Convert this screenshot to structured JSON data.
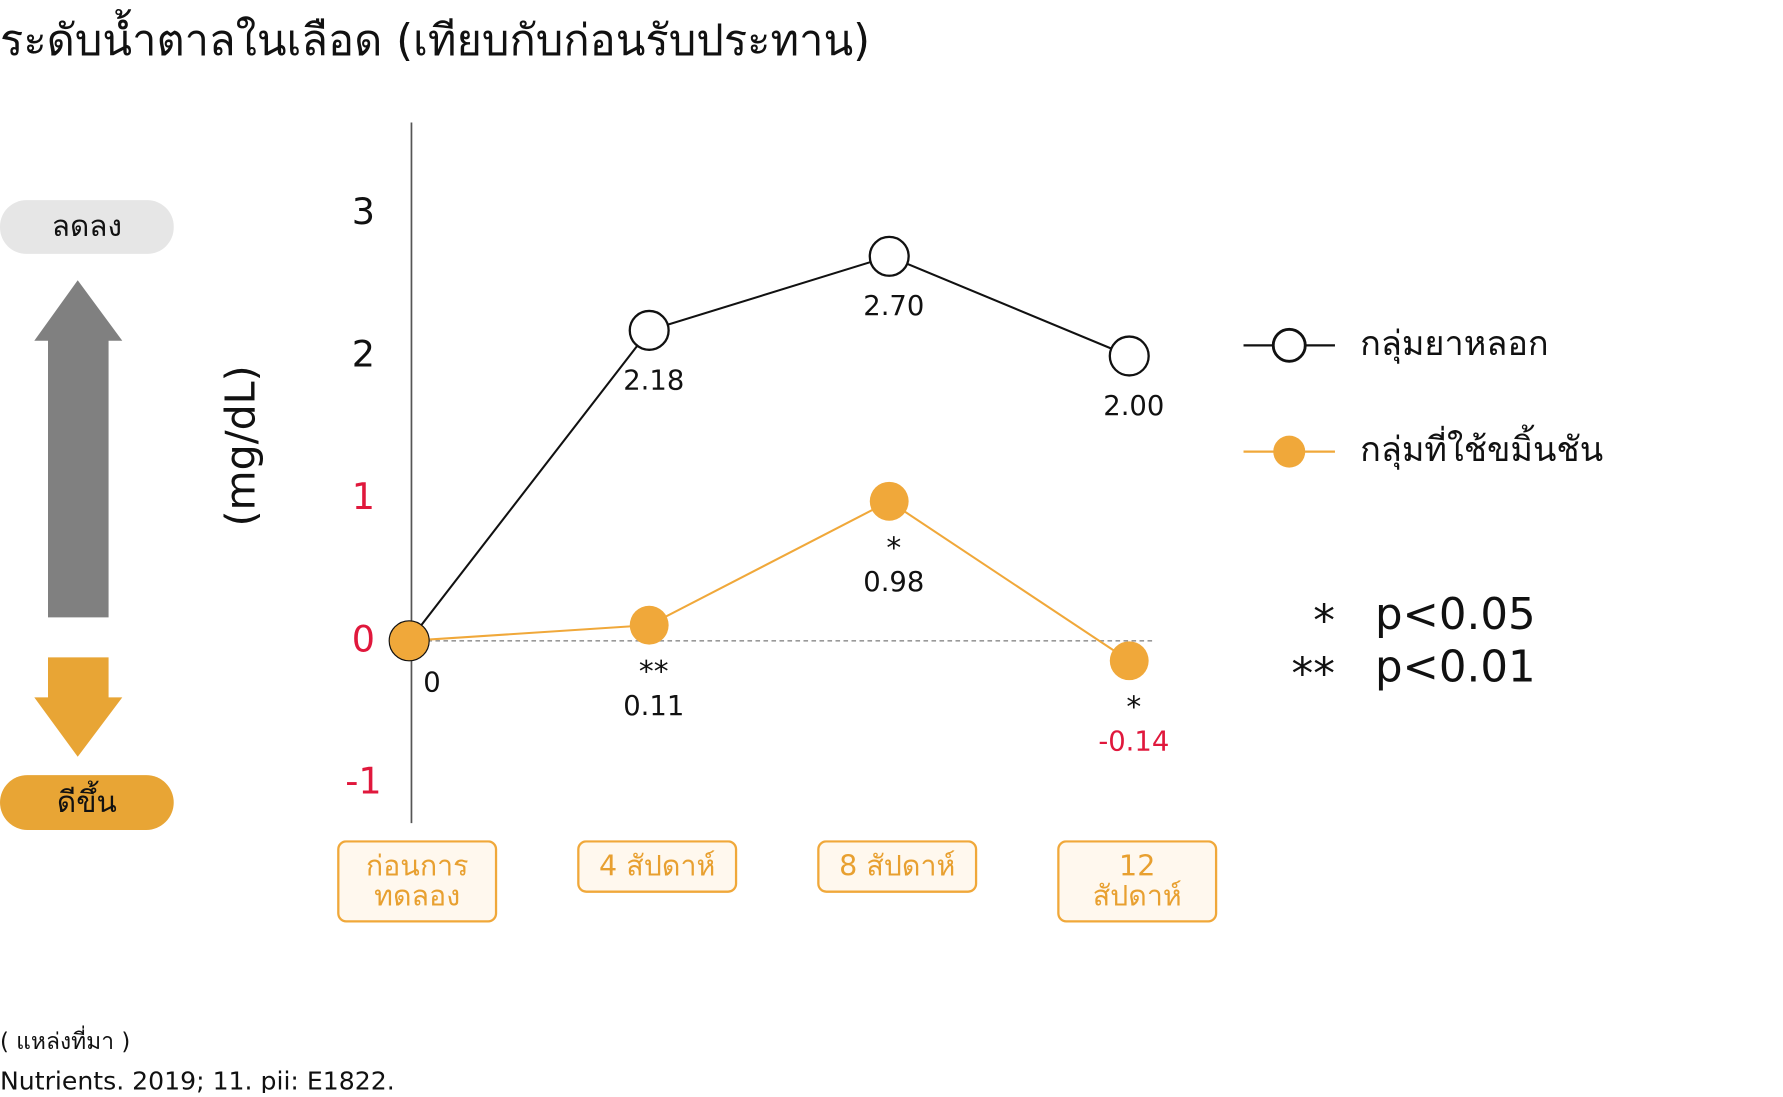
{
  "chart_data": {
    "type": "line",
    "title": "ระดับน้ำตาลในเลือด (เทียบกับก่อนรับประทาน)",
    "y_label": "(mg/dL)",
    "categories": [
      "ก่อนการ ทดลอง",
      "4 สัปดาห์",
      "8 สัปดาห์",
      "12 สัปดาห์"
    ],
    "series": [
      {
        "name": "กลุ่มยาหลอก",
        "color": "#111111",
        "marker": "hollow",
        "values": [
          0,
          2.18,
          2.7,
          2.0
        ],
        "value_labels": [
          null,
          "2.18",
          "2.70",
          "2.00"
        ],
        "significance": [
          null,
          null,
          null,
          null
        ]
      },
      {
        "name": "กลุ่มที่ใช้ขมิ้นชัน",
        "color": "#f0a83a",
        "marker": "filled",
        "values": [
          0,
          0.11,
          0.98,
          -0.14
        ],
        "value_labels": [
          "0",
          "0.11",
          "0.98",
          "-0.14"
        ],
        "significance": [
          null,
          "**",
          "*",
          "*"
        ]
      }
    ],
    "ylim": [
      -1.28,
      3.64
    ],
    "yticks": [
      -1,
      0,
      1,
      2,
      3
    ],
    "ytick_colors": [
      "#e0183c",
      "#e0183c",
      "#e0183c",
      "#111111",
      "#111111"
    ],
    "zero_line": true,
    "significance_legend": [
      {
        "symbol": "*",
        "label": "p<0.05"
      },
      {
        "symbol": "**",
        "label": "p<0.01"
      }
    ],
    "direction": {
      "up": "ลดลง",
      "down": "ดีขึ้น"
    },
    "source": {
      "heading": "( แหล่งที่มา )",
      "citation": "Nutrients. 2019; 11. pii: E1822."
    }
  }
}
